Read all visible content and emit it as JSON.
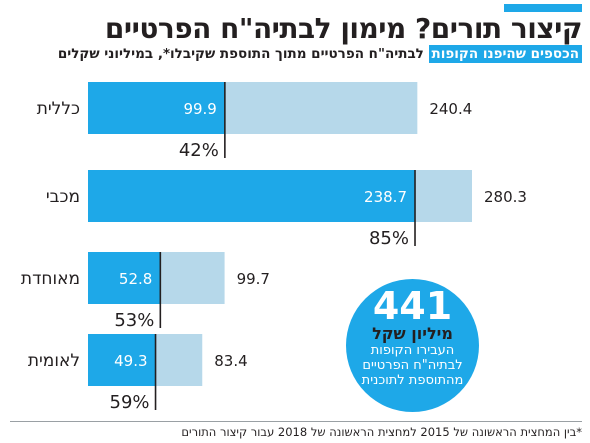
{
  "header": {
    "title": "קיצור תורים? מימון לבתיה\"ח הפרטיים",
    "subtitle_highlight": "הכספים שהיפנו הקופות",
    "subtitle_middle": " לבתיה\"ח הפרטיים מתוך ",
    "subtitle_bold": "התוספת שקיבלו*",
    "subtitle_end": ", במיליוני שקלים"
  },
  "colors": {
    "accent": "#1ea8e8",
    "total_bar": "#b6d8ea",
    "text": "#231f20"
  },
  "chart_data": {
    "type": "bar",
    "orientation": "horizontal",
    "categories": [
      "כללית",
      "מכבי",
      "מאוחדת",
      "לאומית"
    ],
    "series": [],
    "values_private": [
      99.9,
      238.7,
      52.8,
      49.3
    ],
    "values_total": [
      240.4,
      280.3,
      99.7,
      83.4
    ],
    "value_labels_private": [
      "99.9",
      "238.7",
      "52.8",
      "49.3"
    ],
    "value_labels_total": [
      "240.4",
      "280.3",
      "99.7",
      "83.4"
    ],
    "percent_labels": [
      "42%",
      "85%",
      "53%",
      "59%"
    ],
    "xlim": [
      0,
      280.3
    ],
    "grid": false,
    "legend": "none"
  },
  "callout": {
    "number": "441",
    "unit": "מיליון שקל",
    "text": "העבירו הקופות לבתיה\"ח הפרטיים מהתוספת לתוכנית"
  },
  "footnote": "*בין המחצית הראשונה של 2015 למחצית הראשונה של 2018 עבור קיצור התורים"
}
